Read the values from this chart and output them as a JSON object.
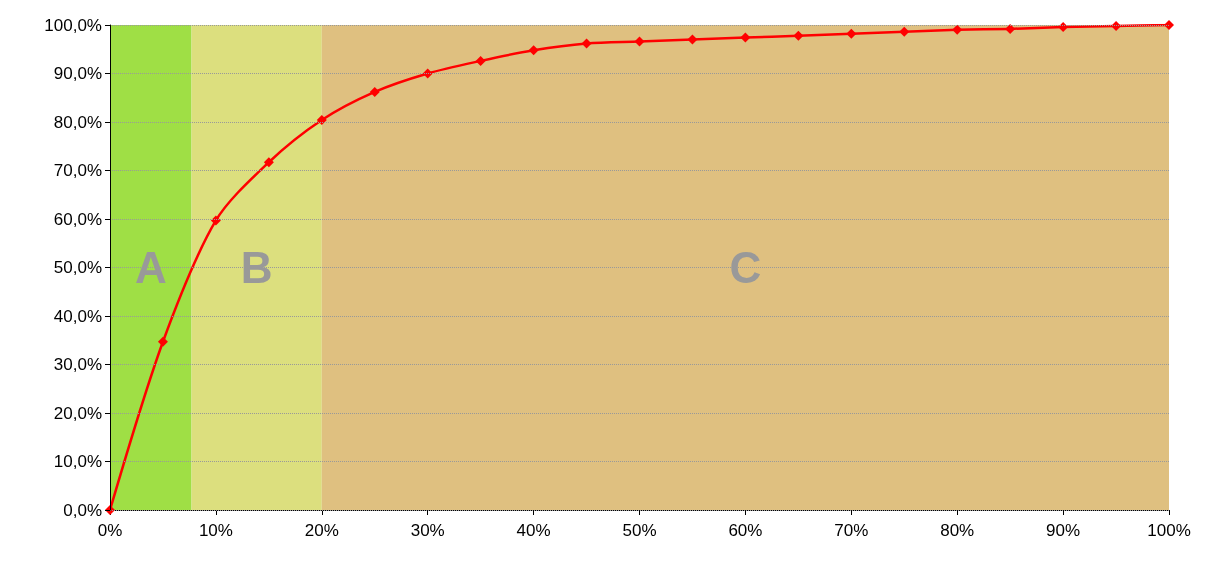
{
  "chart_data": {
    "type": "line",
    "x": [
      0,
      5,
      10,
      15,
      20,
      25,
      30,
      35,
      40,
      45,
      50,
      55,
      60,
      65,
      70,
      75,
      80,
      85,
      90,
      95,
      100
    ],
    "series": [
      {
        "color": "#ff0000",
        "values": [
          0,
          34.7,
          59.7,
          71.7,
          80.4,
          86.2,
          90.0,
          92.6,
          94.8,
          96.2,
          96.6,
          97.0,
          97.4,
          97.8,
          98.2,
          98.6,
          99.0,
          99.2,
          99.6,
          99.8,
          100
        ]
      }
    ],
    "xlim": [
      0,
      100
    ],
    "ylim": [
      0,
      100
    ],
    "xticks": [
      {
        "value": 0,
        "label": "0%"
      },
      {
        "value": 10,
        "label": "10%"
      },
      {
        "value": 20,
        "label": "20%"
      },
      {
        "value": 30,
        "label": "30%"
      },
      {
        "value": 40,
        "label": "40%"
      },
      {
        "value": 50,
        "label": "50%"
      },
      {
        "value": 60,
        "label": "60%"
      },
      {
        "value": 70,
        "label": "70%"
      },
      {
        "value": 80,
        "label": "80%"
      },
      {
        "value": 90,
        "label": "90%"
      },
      {
        "value": 100,
        "label": "100%"
      }
    ],
    "yticks": [
      {
        "value": 0,
        "label": "0,0%"
      },
      {
        "value": 10,
        "label": "10,0%"
      },
      {
        "value": 20,
        "label": "20,0%"
      },
      {
        "value": 30,
        "label": "30,0%"
      },
      {
        "value": 40,
        "label": "40,0%"
      },
      {
        "value": 50,
        "label": "50,0%"
      },
      {
        "value": 60,
        "label": "60,0%"
      },
      {
        "value": 70,
        "label": "70,0%"
      },
      {
        "value": 80,
        "label": "80,0%"
      },
      {
        "value": 90,
        "label": "90,0%"
      },
      {
        "value": 100,
        "label": "100,0%"
      }
    ],
    "bands": [
      {
        "axis": "x",
        "from": 0,
        "to": 7.7,
        "label": "A",
        "color": "#9fdf45"
      },
      {
        "axis": "x",
        "from": 7.7,
        "to": 20,
        "label": "B",
        "color": "#dcdf7e"
      },
      {
        "axis": "x",
        "from": 20,
        "to": 100,
        "label": "C",
        "color": "#dfc080"
      }
    ],
    "grid": "y",
    "marker": "diamond",
    "line_style": "solid"
  }
}
